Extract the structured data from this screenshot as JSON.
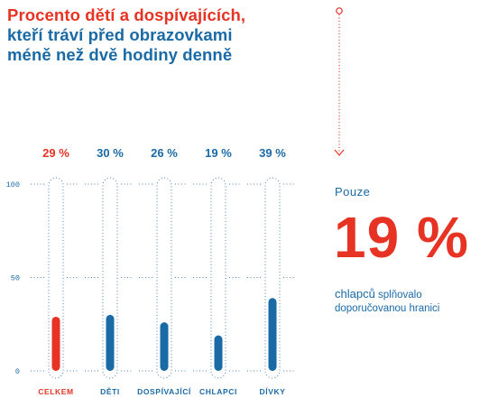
{
  "title": {
    "line1": "Procento dětí a dospívajících,",
    "line2": "kteří tráví před obrazovkami",
    "line3": "méně než dvě hodiny denně"
  },
  "colors": {
    "red": "#e63323",
    "blue": "#1a6aa6",
    "grid": "#4a86b8"
  },
  "chart_data": {
    "type": "bar",
    "style": "thermometer",
    "categories": [
      "CELKEM",
      "DĚTI",
      "DOSPÍVAJÍCÍ",
      "CHLAPCI",
      "DÍVKY"
    ],
    "values": [
      29,
      30,
      26,
      19,
      39
    ],
    "value_labels": [
      "29 %",
      "30 %",
      "26 %",
      "19 %",
      "39 %"
    ],
    "highlight": [
      "red",
      "blue",
      "blue",
      "blue",
      "blue"
    ],
    "yticks": [
      "0",
      "50",
      "100"
    ],
    "ylim": [
      0,
      100
    ],
    "grid": true
  },
  "side": {
    "label": "Pouze",
    "big_value": "19 %",
    "desc_lead": "chlapců",
    "desc_rest": "splňovalo doporučovanou hranici"
  }
}
